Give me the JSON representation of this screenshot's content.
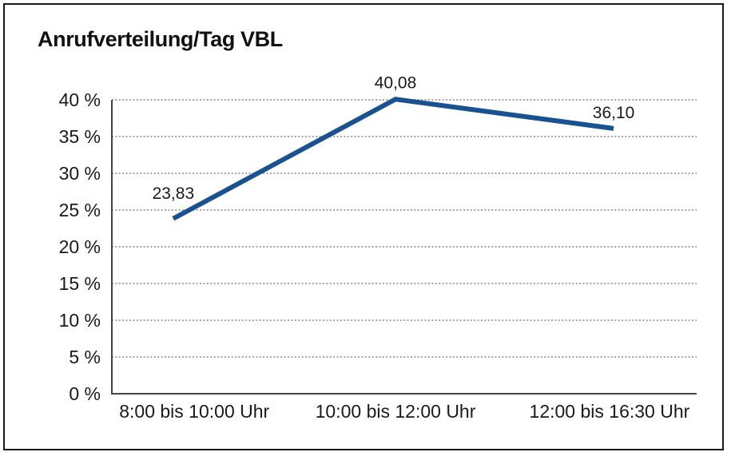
{
  "page": {
    "title": "Anrufverteilung/Tag VBL",
    "border_color": "#1a1a1a",
    "background_color": "#ffffff"
  },
  "chart_data": {
    "type": "line",
    "title": "Anrufverteilung/Tag VBL",
    "categories": [
      "8:00 bis 10:00 Uhr",
      "10:00 bis 12:00 Uhr",
      "12:00 bis 16:30 Uhr"
    ],
    "values": [
      23.83,
      40.08,
      36.1
    ],
    "value_labels": [
      "23,83",
      "40,08",
      "36,10"
    ],
    "ylim": [
      0,
      40
    ],
    "y_ticks": [
      0,
      5,
      10,
      15,
      20,
      25,
      30,
      35,
      40
    ],
    "y_tick_labels": [
      "0 %",
      "5 %",
      "10 %",
      "15 %",
      "20 %",
      "25 %",
      "30 %",
      "35 %",
      "40 %"
    ],
    "grid": "horizontal-dotted",
    "legend": "none",
    "line_color": "#1A5191",
    "grid_color": "#6e6e6e",
    "axis_color": "#444444",
    "text_color": "#1a1a1a"
  }
}
